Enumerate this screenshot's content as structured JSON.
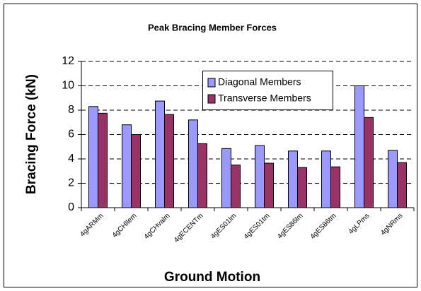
{
  "chart_data": {
    "type": "bar",
    "title": "Peak Bracing Member Forces",
    "x_label": "Ground Motion",
    "y_label": "Bracing Force (kN)",
    "categories": [
      "4gARMm",
      "4gCHllem",
      "4gCHvalm",
      "4gECENTm",
      "4gES01lm",
      "4gES01tm",
      "4gES86lm",
      "4gES86tm",
      "4gLPms",
      "4gNRms"
    ],
    "series": [
      {
        "name": "Diagonal Members",
        "color": "#9999ff",
        "values": [
          8.3,
          6.8,
          8.75,
          7.2,
          4.85,
          5.1,
          4.65,
          4.65,
          10.0,
          4.7
        ]
      },
      {
        "name": "Transverse Members",
        "color": "#993366",
        "values": [
          7.75,
          6.0,
          7.65,
          5.25,
          3.5,
          3.65,
          3.3,
          3.35,
          7.4,
          3.7
        ]
      }
    ],
    "ylim": [
      0,
      12
    ],
    "yticks": [
      0,
      2,
      4,
      6,
      8,
      10,
      12
    ],
    "grid": true,
    "legend_position": "top"
  }
}
